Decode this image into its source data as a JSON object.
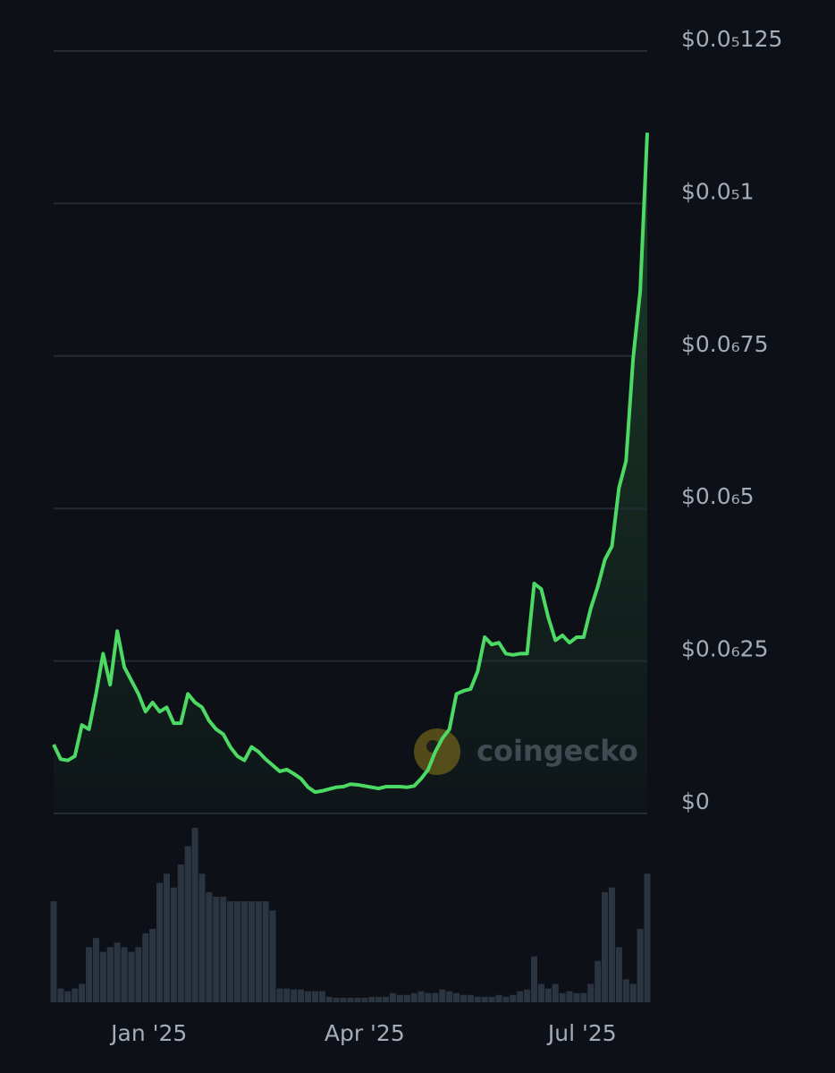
{
  "chart_data": {
    "type": "line",
    "watermark": "coingecko",
    "xlim": [
      0,
      84
    ],
    "xticks": [
      {
        "value": 13.5,
        "label": "Jan '25"
      },
      {
        "value": 44.0,
        "label": "Apr '25"
      },
      {
        "value": 74.8,
        "label": "Jul '25"
      }
    ],
    "ylim": [
      0,
      1.25e-06
    ],
    "yticks": [
      {
        "value": 0,
        "label": "$0"
      },
      {
        "value": 2.5e-07,
        "label": "$0.0₆25"
      },
      {
        "value": 5e-07,
        "label": "$0.0₆5"
      },
      {
        "value": 7.5e-07,
        "label": "$0.0₆75"
      },
      {
        "value": 1e-06,
        "label": "$0.0₅1"
      },
      {
        "value": 1.25e-06,
        "label": "$0.0₅125"
      }
    ],
    "grid": true,
    "series": [
      {
        "color": "#4cd964",
        "values": [
          1.13e-07,
          8.9e-08,
          8.7e-08,
          9.4e-08,
          1.45e-07,
          1.38e-07,
          1.96e-07,
          2.62e-07,
          2.11e-07,
          2.99e-07,
          2.4e-07,
          2.18e-07,
          1.96e-07,
          1.67e-07,
          1.82e-07,
          1.67e-07,
          1.74e-07,
          1.48e-07,
          1.48e-07,
          1.96e-07,
          1.82e-07,
          1.74e-07,
          1.52e-07,
          1.38e-07,
          1.3e-07,
          1.09e-07,
          9.4e-08,
          8.7e-08,
          1.09e-07,
          1.01e-07,
          8.9e-08,
          7.9e-08,
          6.9e-08,
          7.2e-08,
          6.5e-08,
          5.7e-08,
          4.3e-08,
          3.5e-08,
          3.7e-08,
          4e-08,
          4.3e-08,
          4.4e-08,
          4.8e-08,
          4.7e-08,
          4.5e-08,
          4.3e-08,
          4.1e-08,
          4.4e-08,
          4.4e-08,
          4.4e-08,
          4.3e-08,
          4.5e-08,
          5.7e-08,
          7.2e-08,
          1.01e-07,
          1.23e-07,
          1.38e-07,
          1.96e-07,
          2.01e-07,
          2.04e-07,
          2.33e-07,
          2.89e-07,
          2.77e-07,
          2.8e-07,
          2.62e-07,
          2.6e-07,
          2.62e-07,
          2.62e-07,
          3.77e-07,
          3.68e-07,
          3.21e-07,
          2.84e-07,
          2.92e-07,
          2.8e-07,
          2.89e-07,
          2.89e-07,
          3.36e-07,
          3.72e-07,
          4.16e-07,
          4.38e-07,
          5.34e-07,
          5.78e-07,
          7.46e-07,
          8.56e-07,
          1.116e-06
        ]
      },
      {
        "color": "#2b3441",
        "values": [
          110,
          15,
          12,
          15,
          20,
          60,
          70,
          55,
          60,
          65,
          60,
          55,
          60,
          75,
          80,
          130,
          140,
          125,
          150,
          170,
          190,
          140,
          120,
          115,
          115,
          110,
          110,
          110,
          110,
          110,
          110,
          100,
          15,
          15,
          14,
          14,
          12,
          12,
          12,
          6,
          5,
          5,
          5,
          5,
          5,
          6,
          6,
          6,
          10,
          8,
          8,
          10,
          12,
          10,
          10,
          14,
          12,
          10,
          8,
          8,
          6,
          6,
          6,
          8,
          6,
          8,
          12,
          14,
          50,
          20,
          15,
          20,
          10,
          12,
          10,
          10,
          20,
          45,
          120,
          125,
          60,
          25,
          20,
          80,
          140
        ]
      }
    ]
  }
}
